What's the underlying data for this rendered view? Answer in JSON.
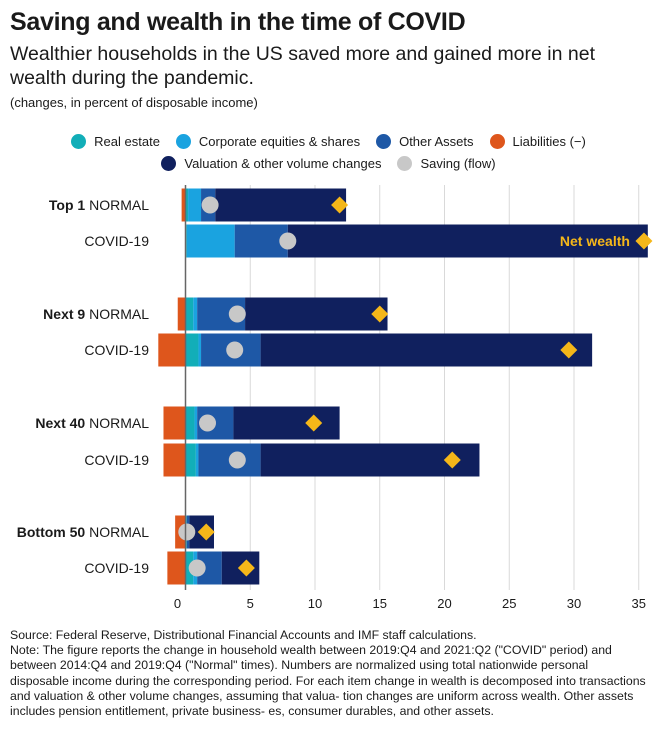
{
  "chart_data": {
    "type": "bar",
    "stacked": true,
    "orientation": "horizontal",
    "title": "Saving and wealth in the time of COVID",
    "subtitle": "Wealthier households in the US saved more and gained more in net wealth during the pandemic.",
    "units": "(changes, in percent of disposable income)",
    "xlim": [
      -2,
      36
    ],
    "xticks": [
      0,
      5,
      10,
      15,
      20,
      25,
      30,
      35
    ],
    "grid": true,
    "legend_placement": "top",
    "groups": [
      {
        "name": "Top 1",
        "rows": [
          {
            "period": "NORMAL",
            "real_estate": 0.2,
            "corporate_equities": 1.0,
            "other_assets": 1.1,
            "valuation": 10.1,
            "liabilities": -0.3,
            "saving": 1.9,
            "net_wealth": 11.9
          },
          {
            "period": "COVID-19",
            "real_estate": 0.1,
            "corporate_equities": 3.7,
            "other_assets": 4.1,
            "valuation": 27.8,
            "liabilities": 0.0,
            "saving": 7.9,
            "net_wealth": 35.4
          }
        ]
      },
      {
        "name": "Next 9",
        "rows": [
          {
            "period": "NORMAL",
            "real_estate": 0.6,
            "corporate_equities": 0.3,
            "other_assets": 3.7,
            "valuation": 11.0,
            "liabilities": -0.6,
            "saving": 4.0,
            "net_wealth": 15.0
          },
          {
            "period": "COVID-19",
            "real_estate": 1.0,
            "corporate_equities": 0.2,
            "other_assets": 4.6,
            "valuation": 25.6,
            "liabilities": -2.1,
            "saving": 3.8,
            "net_wealth": 29.6
          }
        ]
      },
      {
        "name": "Next 40",
        "rows": [
          {
            "period": "NORMAL",
            "real_estate": 0.7,
            "corporate_equities": 0.2,
            "other_assets": 2.8,
            "valuation": 8.2,
            "liabilities": -1.7,
            "saving": 1.7,
            "net_wealth": 9.9
          },
          {
            "period": "COVID-19",
            "real_estate": 0.8,
            "corporate_equities": 0.2,
            "other_assets": 4.8,
            "valuation": 16.9,
            "liabilities": -1.7,
            "saving": 4.0,
            "net_wealth": 20.6
          }
        ]
      },
      {
        "name": "Bottom 50",
        "rows": [
          {
            "period": "NORMAL",
            "real_estate": 0.1,
            "corporate_equities": 0.0,
            "other_assets": 0.2,
            "valuation": 1.9,
            "liabilities": -0.8,
            "saving": 0.1,
            "net_wealth": 1.6
          },
          {
            "period": "COVID-19",
            "real_estate": 0.6,
            "corporate_equities": 0.3,
            "other_assets": 1.9,
            "valuation": 2.9,
            "liabilities": -1.4,
            "saving": 0.9,
            "net_wealth": 4.7
          }
        ]
      }
    ],
    "series": [
      {
        "key": "real_estate",
        "name": "Real estate",
        "color": "#12aeb8"
      },
      {
        "key": "corporate_equities",
        "name": "Corporate equities & shares",
        "color": "#1aa3e0"
      },
      {
        "key": "other_assets",
        "name": "Other Assets",
        "color": "#1e58a6"
      },
      {
        "key": "liabilities",
        "name": "Liabilities (−)",
        "color": "#de561c"
      },
      {
        "key": "valuation",
        "name": "Valuation & other volume changes",
        "color": "#10205e"
      },
      {
        "key": "saving",
        "name": "Saving (flow)",
        "color": "#c8c8c8"
      }
    ],
    "net_wealth_marker": {
      "label": "Net wealth",
      "color": "#f5b719",
      "label_color": "#f5b719"
    }
  },
  "legend": {
    "row1": [
      "Real estate",
      "Corporate equities & shares",
      "Other Assets",
      "Liabilities (−)"
    ],
    "row2": [
      "Valuation & other volume changes",
      "Saving (flow)"
    ]
  },
  "notes": {
    "source": "Source: Federal Reserve, Distributional Financial Accounts and IMF staff calculations.",
    "note": "Note: The figure reports the change in household wealth between 2019:Q4 and 2021:Q2 (\"COVID\" period) and between 2014:Q4 and 2019:Q4 (\"Normal\" times). Numbers are normalized using total nationwide personal disposable income during the corresponding period. For each item change in wealth is decomposed into transactions and valuation & other volume changes, assuming that valua- tion changes are uniform across wealth. Other assets includes pension entitlement, private business- es, consumer durables, and other assets."
  }
}
